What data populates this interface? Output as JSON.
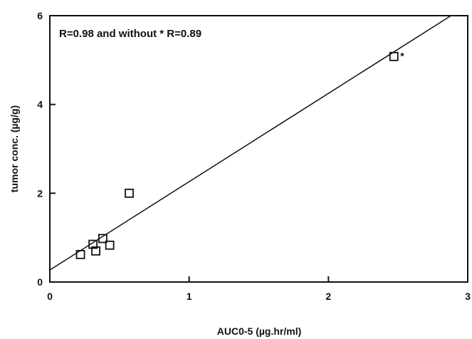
{
  "chart_data": {
    "type": "scatter",
    "xlabel": "AUC0-5 (µg.hr/ml)",
    "ylabel": "tumor conc. (µg/g)",
    "xlim": [
      0,
      3
    ],
    "ylim": [
      0,
      6
    ],
    "x_ticks": [
      0,
      1,
      2,
      3
    ],
    "x_tick_labels": [
      "0",
      "1",
      "2",
      "3"
    ],
    "y_ticks": [
      0,
      2,
      4,
      6
    ],
    "y_tick_labels": [
      "0",
      "2",
      "4",
      "6"
    ],
    "grid": false,
    "legend": "none",
    "annotation": "R=0.98 and without * R=0.89",
    "marker": "open-square",
    "series": [
      {
        "points": [
          {
            "x": 0.22,
            "y": 0.62
          },
          {
            "x": 0.31,
            "y": 0.85
          },
          {
            "x": 0.33,
            "y": 0.7
          },
          {
            "x": 0.38,
            "y": 0.98
          },
          {
            "x": 0.43,
            "y": 0.83
          },
          {
            "x": 0.57,
            "y": 2.0
          },
          {
            "x": 2.47,
            "y": 5.08,
            "label": "*"
          }
        ]
      }
    ],
    "fit_line": {
      "x": [
        0,
        2.88
      ],
      "y": [
        0.27,
        6.0
      ]
    }
  }
}
